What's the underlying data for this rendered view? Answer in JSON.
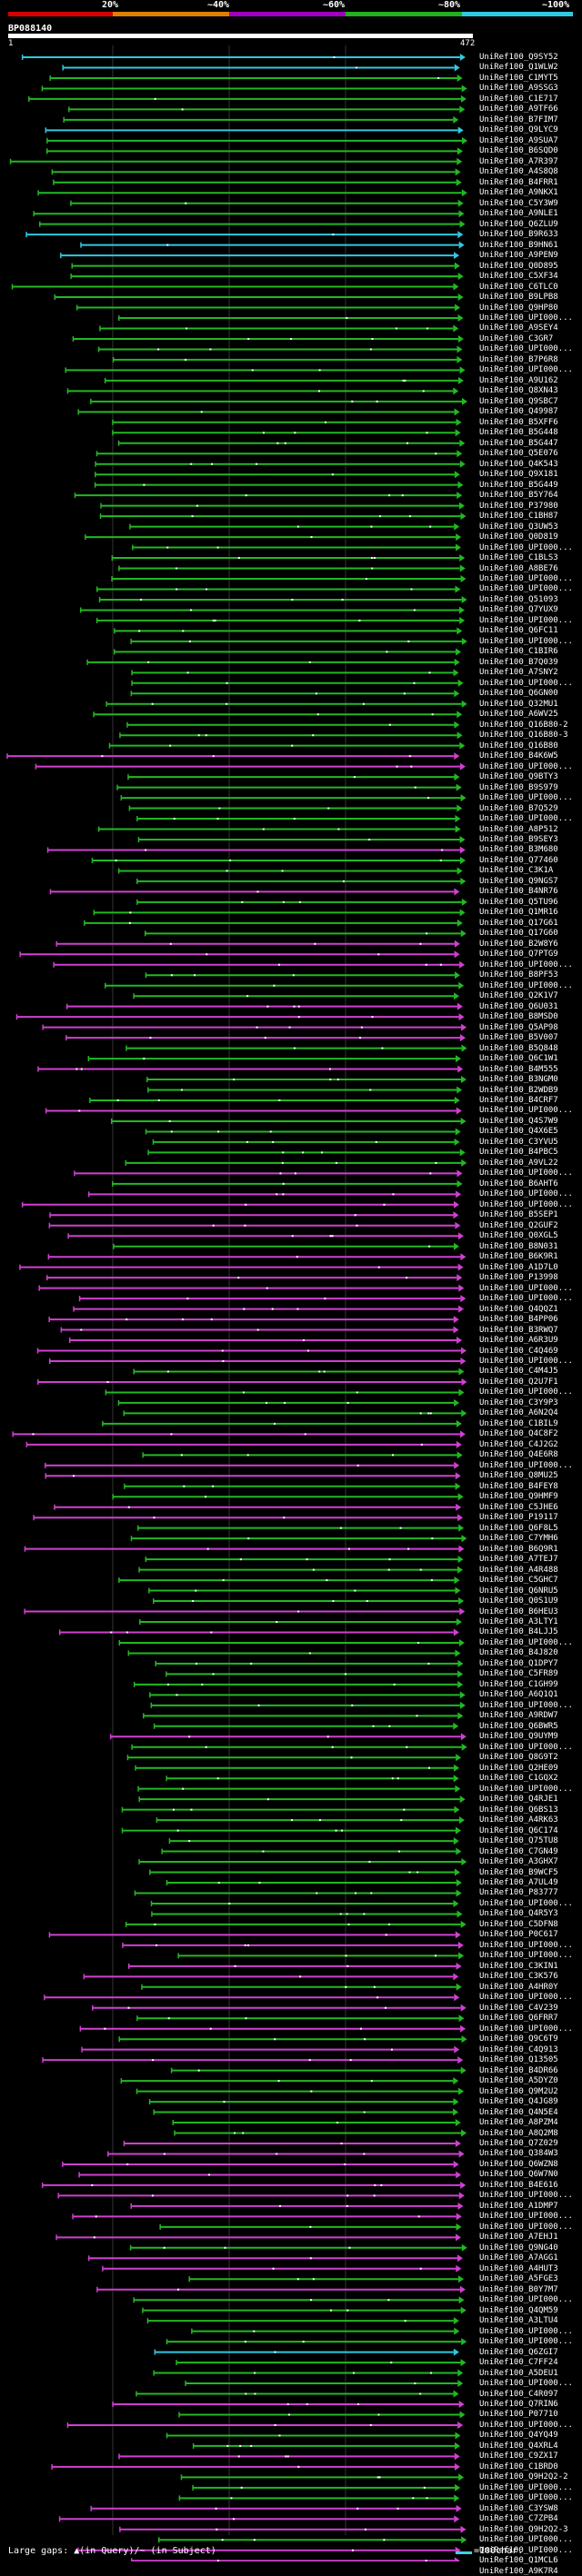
{
  "legend": {
    "items": [
      {
        "label": "20%",
        "color": "#d40000"
      },
      {
        "label": "~40%",
        "color": "#e08000"
      },
      {
        "label": "~60%",
        "color": "#a000c0"
      },
      {
        "label": "~80%",
        "color": "#20b020"
      },
      {
        "label": "~100%",
        "color": "#30c8e0"
      }
    ]
  },
  "query": {
    "id": "BP088140",
    "start": "1",
    "end": "472"
  },
  "footer": {
    "left": "Large gaps: ▲(in Query)/~ (in Subject)",
    "right": "=100char."
  },
  "colors": {
    "green": "#22b822",
    "magenta": "#d040d0",
    "cyan": "#30c8e0",
    "white": "#ffffff"
  },
  "hits": [
    {
      "label": "UniRef100_Q9SY52",
      "color": "cyan"
    },
    {
      "label": "UniRef100_Q1WLW2",
      "color": "cyan"
    },
    {
      "label": "UniRef100_C1MYT5",
      "color": "green"
    },
    {
      "label": "UniRef100_A9SSG3",
      "color": "green"
    },
    {
      "label": "UniRef100_C1E717",
      "color": "green"
    },
    {
      "label": "UniRef100_A9TF66",
      "color": "green"
    },
    {
      "label": "UniRef100_B7FIM7",
      "color": "green"
    },
    {
      "label": "UniRef100_Q9LYC9",
      "color": "cyan"
    },
    {
      "label": "UniRef100_A9SUA7",
      "color": "green"
    },
    {
      "label": "UniRef100_B6SQD0",
      "color": "green"
    },
    {
      "label": "UniRef100_A7R397",
      "color": "green"
    },
    {
      "label": "UniRef100_A4S8Q8",
      "color": "green"
    },
    {
      "label": "UniRef100_B4FRR1",
      "color": "green"
    },
    {
      "label": "UniRef100_A9NKX1",
      "color": "green"
    },
    {
      "label": "UniRef100_C5Y3W9",
      "color": "green"
    },
    {
      "label": "UniRef100_A9NLE1",
      "color": "green"
    },
    {
      "label": "UniRef100_Q6ZLU9",
      "color": "green"
    },
    {
      "label": "UniRef100_B9R633",
      "color": "cyan"
    },
    {
      "label": "UniRef100_B9HN61",
      "color": "cyan"
    },
    {
      "label": "UniRef100_A9PEN9",
      "color": "cyan"
    },
    {
      "label": "UniRef100_Q0D895",
      "color": "green"
    },
    {
      "label": "UniRef100_C5XF34",
      "color": "green"
    },
    {
      "label": "UniRef100_C6TLC0",
      "color": "green"
    },
    {
      "label": "UniRef100_B9LPB8",
      "color": "green"
    },
    {
      "label": "UniRef100_Q9HP80",
      "color": "green"
    },
    {
      "label": "UniRef100_UPI000...",
      "color": "green"
    },
    {
      "label": "UniRef100_A9SEY4",
      "color": "green"
    },
    {
      "label": "UniRef100_C3GR7",
      "color": "green"
    },
    {
      "label": "UniRef100_UPI000...",
      "color": "green"
    },
    {
      "label": "UniRef100_B7P6R8",
      "color": "green"
    },
    {
      "label": "UniRef100_UPI000...",
      "color": "green"
    },
    {
      "label": "UniRef100_A9U162",
      "color": "green"
    },
    {
      "label": "UniRef100_Q8XN43",
      "color": "green"
    },
    {
      "label": "UniRef100_Q9SBC7",
      "color": "green"
    },
    {
      "label": "UniRef100_Q49987",
      "color": "green"
    },
    {
      "label": "UniRef100_B5XFF6",
      "color": "green"
    },
    {
      "label": "UniRef100_B5G448",
      "color": "green"
    },
    {
      "label": "UniRef100_B5G447",
      "color": "green"
    },
    {
      "label": "UniRef100_Q5E076",
      "color": "green"
    },
    {
      "label": "UniRef100_Q4K543",
      "color": "green"
    },
    {
      "label": "UniRef100_Q9X181",
      "color": "green"
    },
    {
      "label": "UniRef100_B5G449",
      "color": "green"
    },
    {
      "label": "UniRef100_B5Y764",
      "color": "green"
    },
    {
      "label": "UniRef100_P37980",
      "color": "green"
    },
    {
      "label": "UniRef100_C1BH87",
      "color": "green"
    },
    {
      "label": "UniRef100_Q3UW53",
      "color": "green"
    },
    {
      "label": "UniRef100_Q0D819",
      "color": "green"
    },
    {
      "label": "UniRef100_UPI000...",
      "color": "green"
    },
    {
      "label": "UniRef100_C1BLS3",
      "color": "green"
    },
    {
      "label": "UniRef100_A8BE76",
      "color": "green"
    },
    {
      "label": "UniRef100_UPI000...",
      "color": "green"
    },
    {
      "label": "UniRef100_UPI000...",
      "color": "green"
    },
    {
      "label": "UniRef100_Q51093",
      "color": "green"
    },
    {
      "label": "UniRef100_Q7YUX9",
      "color": "green"
    },
    {
      "label": "UniRef100_UPI000...",
      "color": "green"
    },
    {
      "label": "UniRef100_Q6FC11",
      "color": "green"
    },
    {
      "label": "UniRef100_UPI000...",
      "color": "green"
    },
    {
      "label": "UniRef100_C1BIR6",
      "color": "green"
    },
    {
      "label": "UniRef100_B7Q039",
      "color": "green"
    },
    {
      "label": "UniRef100_A7SNY2",
      "color": "green"
    },
    {
      "label": "UniRef100_UPI000...",
      "color": "green"
    },
    {
      "label": "UniRef100_Q6GN00",
      "color": "green"
    },
    {
      "label": "UniRef100_Q32MU1",
      "color": "green"
    },
    {
      "label": "UniRef100_A6WV25",
      "color": "green"
    },
    {
      "label": "UniRef100_Q16B80-2",
      "color": "green"
    },
    {
      "label": "UniRef100_Q16B80-3",
      "color": "green"
    },
    {
      "label": "UniRef100_Q16B80",
      "color": "green"
    },
    {
      "label": "UniRef100_B4K6W5",
      "color": "magenta"
    },
    {
      "label": "UniRef100_UPI000...",
      "color": "magenta"
    },
    {
      "label": "UniRef100_Q9BTY3",
      "color": "green"
    },
    {
      "label": "UniRef100_B9S979",
      "color": "green"
    },
    {
      "label": "UniRef100_UPI000...",
      "color": "green"
    },
    {
      "label": "UniRef100_B7Q529",
      "color": "green"
    },
    {
      "label": "UniRef100_UPI000...",
      "color": "green"
    },
    {
      "label": "UniRef100_A8P512",
      "color": "green"
    },
    {
      "label": "UniRef100_B9SEY3",
      "color": "green"
    },
    {
      "label": "UniRef100_B3M680",
      "color": "magenta"
    },
    {
      "label": "UniRef100_Q77460",
      "color": "green"
    },
    {
      "label": "UniRef100_C3K1A",
      "color": "green"
    },
    {
      "label": "UniRef100_Q9NGS7",
      "color": "green"
    },
    {
      "label": "UniRef100_B4NR76",
      "color": "magenta"
    },
    {
      "label": "UniRef100_Q5TU96",
      "color": "green"
    },
    {
      "label": "UniRef100_Q1MR16",
      "color": "green"
    },
    {
      "label": "UniRef100_Q17G61",
      "color": "green"
    },
    {
      "label": "UniRef100_Q17G60",
      "color": "green"
    },
    {
      "label": "UniRef100_B2W8Y6",
      "color": "magenta"
    },
    {
      "label": "UniRef100_Q7PTG9",
      "color": "magenta"
    },
    {
      "label": "UniRef100_UPI000...",
      "color": "magenta"
    },
    {
      "label": "UniRef100_B8PF53",
      "color": "green"
    },
    {
      "label": "UniRef100_UPI000...",
      "color": "green"
    },
    {
      "label": "UniRef100_Q2K1V7",
      "color": "green"
    },
    {
      "label": "UniRef100_Q6U031",
      "color": "magenta"
    },
    {
      "label": "UniRef100_B8MSD0",
      "color": "magenta"
    },
    {
      "label": "UniRef100_Q5AP98",
      "color": "magenta"
    },
    {
      "label": "UniRef100_B5V007",
      "color": "magenta"
    },
    {
      "label": "UniRef100_B5Q848",
      "color": "green"
    },
    {
      "label": "UniRef100_Q6C1W1",
      "color": "green"
    },
    {
      "label": "UniRef100_B4M555",
      "color": "magenta"
    },
    {
      "label": "UniRef100_B3NGM0",
      "color": "green"
    },
    {
      "label": "UniRef100_B2WDB9",
      "color": "green"
    },
    {
      "label": "UniRef100_B4CRF7",
      "color": "green"
    },
    {
      "label": "UniRef100_UPI000...",
      "color": "magenta"
    },
    {
      "label": "UniRef100_Q4S7W9",
      "color": "green"
    },
    {
      "label": "UniRef100_Q4X6E5",
      "color": "green"
    },
    {
      "label": "UniRef100_C3YVU5",
      "color": "green"
    },
    {
      "label": "UniRef100_B4PBC5",
      "color": "green"
    },
    {
      "label": "UniRef100_A9VL22",
      "color": "green"
    },
    {
      "label": "UniRef100_UPI000...",
      "color": "magenta"
    },
    {
      "label": "UniRef100_B6AHT6",
      "color": "green"
    },
    {
      "label": "UniRef100_UPI000...",
      "color": "magenta"
    },
    {
      "label": "UniRef100_UPI000...",
      "color": "magenta"
    },
    {
      "label": "UniRef100_B5SEP1",
      "color": "magenta"
    },
    {
      "label": "UniRef100_Q2GUF2",
      "color": "magenta"
    },
    {
      "label": "UniRef100_Q0XGL5",
      "color": "magenta"
    },
    {
      "label": "UniRef100_B8N031",
      "color": "green"
    },
    {
      "label": "UniRef100_B6K9R1",
      "color": "magenta"
    },
    {
      "label": "UniRef100_A1D7L0",
      "color": "magenta"
    },
    {
      "label": "UniRef100_P13998",
      "color": "magenta"
    },
    {
      "label": "UniRef100_UPI000...",
      "color": "magenta"
    },
    {
      "label": "UniRef100_UPI000...",
      "color": "magenta"
    },
    {
      "label": "UniRef100_Q4QQZ1",
      "color": "magenta"
    },
    {
      "label": "UniRef100_B4PP06",
      "color": "magenta"
    },
    {
      "label": "UniRef100_B3RWQ7",
      "color": "magenta"
    },
    {
      "label": "UniRef100_A6R3U9",
      "color": "magenta"
    },
    {
      "label": "UniRef100_C4Q469",
      "color": "magenta"
    },
    {
      "label": "UniRef100_UPI000...",
      "color": "magenta"
    },
    {
      "label": "UniRef100_C4M4J5",
      "color": "green"
    },
    {
      "label": "UniRef100_Q2U7F1",
      "color": "magenta"
    },
    {
      "label": "UniRef100_UPI000...",
      "color": "green"
    },
    {
      "label": "UniRef100_C3Y9P3",
      "color": "green"
    },
    {
      "label": "UniRef100_A6N2Q4",
      "color": "green"
    },
    {
      "label": "UniRef100_C1BIL9",
      "color": "green"
    },
    {
      "label": "UniRef100_Q4C8F2",
      "color": "magenta"
    },
    {
      "label": "UniRef100_C4J2G2",
      "color": "magenta"
    },
    {
      "label": "UniRef100_Q4E6R8",
      "color": "green"
    },
    {
      "label": "UniRef100_UPI000...",
      "color": "magenta"
    },
    {
      "label": "UniRef100_Q8MU25",
      "color": "magenta"
    },
    {
      "label": "UniRef100_B4FEY8",
      "color": "green"
    },
    {
      "label": "UniRef100_Q9HMF9",
      "color": "green"
    },
    {
      "label": "UniRef100_C5JHE6",
      "color": "magenta"
    },
    {
      "label": "UniRef100_P19117",
      "color": "magenta"
    },
    {
      "label": "UniRef100_Q6F8L5",
      "color": "green"
    },
    {
      "label": "UniRef100_C7YMH6",
      "color": "green"
    },
    {
      "label": "UniRef100_B6Q9R1",
      "color": "magenta"
    },
    {
      "label": "UniRef100_A7TEJ7",
      "color": "green"
    },
    {
      "label": "UniRef100_A4R488",
      "color": "green"
    },
    {
      "label": "UniRef100_C5GHC7",
      "color": "green"
    },
    {
      "label": "UniRef100_Q6NRU5",
      "color": "green"
    },
    {
      "label": "UniRef100_Q0S1U9",
      "color": "green"
    },
    {
      "label": "UniRef100_B6HEU3",
      "color": "magenta"
    },
    {
      "label": "UniRef100_A3LTY1",
      "color": "green"
    },
    {
      "label": "UniRef100_B4LJJ5",
      "color": "magenta"
    },
    {
      "label": "UniRef100_UPI000...",
      "color": "green"
    },
    {
      "label": "UniRef100_B4J820",
      "color": "green"
    },
    {
      "label": "UniRef100_Q1DPY7",
      "color": "green"
    },
    {
      "label": "UniRef100_C5FR89",
      "color": "green"
    },
    {
      "label": "UniRef100_C1GH99",
      "color": "green"
    },
    {
      "label": "UniRef100_A6Q1Q1",
      "color": "green"
    },
    {
      "label": "UniRef100_UPI000...",
      "color": "green"
    },
    {
      "label": "UniRef100_A9RDW7",
      "color": "green"
    },
    {
      "label": "UniRef100_Q6BWR5",
      "color": "green"
    },
    {
      "label": "UniRef100_Q9UYM9",
      "color": "magenta"
    },
    {
      "label": "UniRef100_UPI000...",
      "color": "green"
    },
    {
      "label": "UniRef100_Q8G9T2",
      "color": "green"
    },
    {
      "label": "UniRef100_Q2HE09",
      "color": "green"
    },
    {
      "label": "UniRef100_C1GQX2",
      "color": "green"
    },
    {
      "label": "UniRef100_UPI000...",
      "color": "green"
    },
    {
      "label": "UniRef100_Q4RJE1",
      "color": "green"
    },
    {
      "label": "UniRef100_Q6BS13",
      "color": "green"
    },
    {
      "label": "UniRef100_A4RK63",
      "color": "green"
    },
    {
      "label": "UniRef100_Q6C174",
      "color": "green"
    },
    {
      "label": "UniRef100_Q75TU8",
      "color": "green"
    },
    {
      "label": "UniRef100_C7GN49",
      "color": "green"
    },
    {
      "label": "UniRef100_A3GHX7",
      "color": "green"
    },
    {
      "label": "UniRef100_B9WCF5",
      "color": "green"
    },
    {
      "label": "UniRef100_A7UL49",
      "color": "green"
    },
    {
      "label": "UniRef100_P83777",
      "color": "green"
    },
    {
      "label": "UniRef100_UPI000...",
      "color": "green"
    },
    {
      "label": "UniRef100_Q4R5Y3",
      "color": "green"
    },
    {
      "label": "UniRef100_C5DFN8",
      "color": "green"
    },
    {
      "label": "UniRef100_P0C617",
      "color": "magenta"
    },
    {
      "label": "UniRef100_UPI000...",
      "color": "magenta"
    },
    {
      "label": "UniRef100_UPI000...",
      "color": "green"
    },
    {
      "label": "UniRef100_C3KIN1",
      "color": "magenta"
    },
    {
      "label": "UniRef100_C3K576",
      "color": "magenta"
    },
    {
      "label": "UniRef100_A4HR0Y",
      "color": "green"
    },
    {
      "label": "UniRef100_UPI000...",
      "color": "magenta"
    },
    {
      "label": "UniRef100_C4V239",
      "color": "magenta"
    },
    {
      "label": "UniRef100_Q6FRR7",
      "color": "green"
    },
    {
      "label": "UniRef100_UPI000...",
      "color": "magenta"
    },
    {
      "label": "UniRef100_Q9C6T9",
      "color": "green"
    },
    {
      "label": "UniRef100_C4Q913",
      "color": "magenta"
    },
    {
      "label": "UniRef100_Q13505",
      "color": "magenta"
    },
    {
      "label": "UniRef100_B4DR66",
      "color": "green"
    },
    {
      "label": "UniRef100_A5DYZ0",
      "color": "green"
    },
    {
      "label": "UniRef100_Q9M2U2",
      "color": "green"
    },
    {
      "label": "UniRef100_Q4JG89",
      "color": "green"
    },
    {
      "label": "UniRef100_Q4N5E4",
      "color": "green"
    },
    {
      "label": "UniRef100_A8PZM4",
      "color": "green"
    },
    {
      "label": "UniRef100_A8Q2M8",
      "color": "green"
    },
    {
      "label": "UniRef100_Q7Z029",
      "color": "magenta"
    },
    {
      "label": "UniRef100_Q384W3",
      "color": "magenta"
    },
    {
      "label": "UniRef100_Q6WZN8",
      "color": "magenta"
    },
    {
      "label": "UniRef100_Q6W7N0",
      "color": "magenta"
    },
    {
      "label": "UniRef100_B4E616",
      "color": "magenta"
    },
    {
      "label": "UniRef100_UPI000...",
      "color": "magenta"
    },
    {
      "label": "UniRef100_A1DMP7",
      "color": "magenta"
    },
    {
      "label": "UniRef100_UPI000...",
      "color": "magenta"
    },
    {
      "label": "UniRef100_UPI000...",
      "color": "green"
    },
    {
      "label": "UniRef100_A7EHJ1",
      "color": "magenta"
    },
    {
      "label": "UniRef100_Q9NG40",
      "color": "green"
    },
    {
      "label": "UniRef100_A7AGG1",
      "color": "magenta"
    },
    {
      "label": "UniRef100_A4HUT3",
      "color": "magenta"
    },
    {
      "label": "UniRef100_A5FGE3",
      "color": "green"
    },
    {
      "label": "UniRef100_B0Y7M7",
      "color": "magenta"
    },
    {
      "label": "UniRef100_UPI000...",
      "color": "green"
    },
    {
      "label": "UniRef100_Q4QM59",
      "color": "green"
    },
    {
      "label": "UniRef100_A3LTU4",
      "color": "green"
    },
    {
      "label": "UniRef100_UPI000...",
      "color": "green"
    },
    {
      "label": "UniRef100_UPI000...",
      "color": "green"
    },
    {
      "label": "UniRef100_Q6ZGI7",
      "color": "cyan"
    },
    {
      "label": "UniRef100_C7FF24",
      "color": "green"
    },
    {
      "label": "UniRef100_A5DEU1",
      "color": "green"
    },
    {
      "label": "UniRef100_UPI000...",
      "color": "green"
    },
    {
      "label": "UniRef100_C4R097",
      "color": "green"
    },
    {
      "label": "UniRef100_Q7RIN6",
      "color": "magenta"
    },
    {
      "label": "UniRef100_P07710",
      "color": "green"
    },
    {
      "label": "UniRef100_UPI000...",
      "color": "magenta"
    },
    {
      "label": "UniRef100_Q4YQ49",
      "color": "green"
    },
    {
      "label": "UniRef100_Q4XRL4",
      "color": "green"
    },
    {
      "label": "UniRef100_C9ZX17",
      "color": "magenta"
    },
    {
      "label": "UniRef100_C1BRD0",
      "color": "magenta"
    },
    {
      "label": "UniRef100_Q9H2Q2-2",
      "color": "green"
    },
    {
      "label": "UniRef100_UPI000...",
      "color": "green"
    },
    {
      "label": "UniRef100_UPI000...",
      "color": "green"
    },
    {
      "label": "UniRef100_C3YSW8",
      "color": "magenta"
    },
    {
      "label": "UniRef100_C7ZPB4",
      "color": "magenta"
    },
    {
      "label": "UniRef100_Q9H2Q2-3",
      "color": "magenta"
    },
    {
      "label": "UniRef100_UPI000...",
      "color": "green"
    },
    {
      "label": "UniRef100_UPI000...",
      "color": "magenta"
    },
    {
      "label": "UniRef100_Q1MCL6",
      "color": "magenta"
    },
    {
      "label": "UniRef100_A9K7R4",
      "color": "green"
    }
  ]
}
